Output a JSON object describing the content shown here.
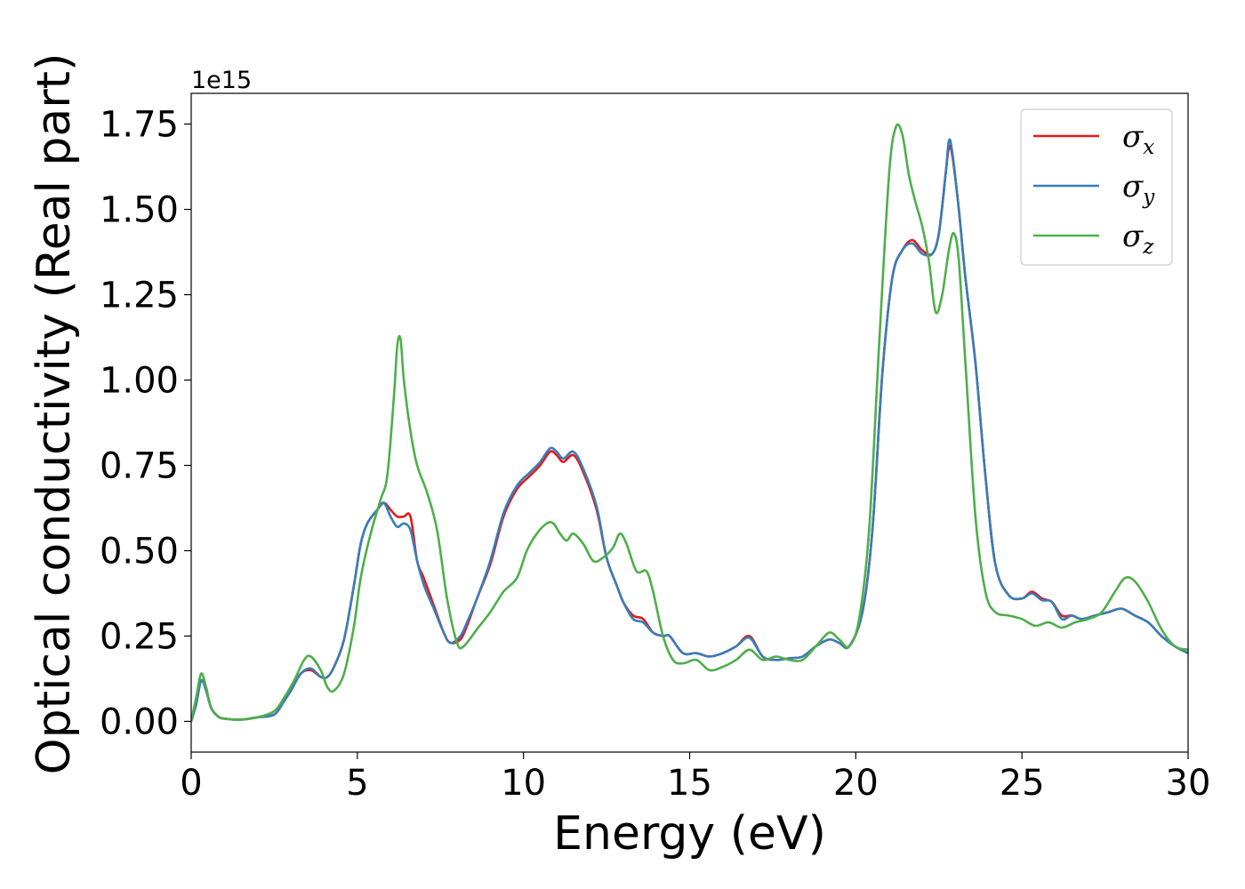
{
  "chart_data": {
    "type": "line",
    "xlabel": "Energy (eV)",
    "ylabel": "Optical conductivity (Real part)",
    "offset_text": "1e15",
    "y_scale": 1000000000000000.0,
    "xlim": [
      0,
      30
    ],
    "ylim": [
      -0.09,
      1.84
    ],
    "xticks": [
      0,
      5,
      10,
      15,
      20,
      25,
      30
    ],
    "xtick_labels": [
      "0",
      "5",
      "10",
      "15",
      "20",
      "25",
      "30"
    ],
    "yticks": [
      0.0,
      0.25,
      0.5,
      0.75,
      1.0,
      1.25,
      1.5,
      1.75
    ],
    "ytick_labels": [
      "0.00",
      "0.25",
      "0.50",
      "0.75",
      "1.00",
      "1.25",
      "1.50",
      "1.75"
    ],
    "grid": false,
    "legend_position": "top-right",
    "series": [
      {
        "name": "σx",
        "symbol": "σ",
        "subscript": "x",
        "color": "#e41a1c",
        "points": [
          [
            0,
            0.0
          ],
          [
            0.15,
            0.05
          ],
          [
            0.3,
            0.12
          ],
          [
            0.45,
            0.09
          ],
          [
            0.6,
            0.04
          ],
          [
            0.8,
            0.015
          ],
          [
            1.0,
            0.008
          ],
          [
            1.5,
            0.005
          ],
          [
            2.0,
            0.012
          ],
          [
            2.5,
            0.02
          ],
          [
            2.8,
            0.06
          ],
          [
            3.0,
            0.09
          ],
          [
            3.3,
            0.14
          ],
          [
            3.6,
            0.15
          ],
          [
            3.9,
            0.13
          ],
          [
            4.1,
            0.13
          ],
          [
            4.3,
            0.16
          ],
          [
            4.6,
            0.24
          ],
          [
            4.9,
            0.4
          ],
          [
            5.1,
            0.52
          ],
          [
            5.3,
            0.58
          ],
          [
            5.6,
            0.62
          ],
          [
            5.8,
            0.64
          ],
          [
            6.0,
            0.62
          ],
          [
            6.2,
            0.6
          ],
          [
            6.4,
            0.6
          ],
          [
            6.6,
            0.6
          ],
          [
            6.8,
            0.47
          ],
          [
            7.0,
            0.42
          ],
          [
            7.3,
            0.34
          ],
          [
            7.6,
            0.26
          ],
          [
            7.8,
            0.23
          ],
          [
            8.1,
            0.24
          ],
          [
            8.3,
            0.28
          ],
          [
            8.6,
            0.36
          ],
          [
            9.0,
            0.46
          ],
          [
            9.4,
            0.6
          ],
          [
            9.8,
            0.68
          ],
          [
            10.2,
            0.72
          ],
          [
            10.5,
            0.75
          ],
          [
            10.8,
            0.79
          ],
          [
            11.0,
            0.78
          ],
          [
            11.2,
            0.76
          ],
          [
            11.5,
            0.78
          ],
          [
            11.8,
            0.73
          ],
          [
            12.2,
            0.62
          ],
          [
            12.5,
            0.48
          ],
          [
            12.8,
            0.4
          ],
          [
            13.0,
            0.35
          ],
          [
            13.3,
            0.31
          ],
          [
            13.6,
            0.3
          ],
          [
            13.9,
            0.26
          ],
          [
            14.2,
            0.25
          ],
          [
            14.4,
            0.25
          ],
          [
            14.8,
            0.2
          ],
          [
            15.2,
            0.2
          ],
          [
            15.6,
            0.19
          ],
          [
            16.0,
            0.2
          ],
          [
            16.4,
            0.22
          ],
          [
            16.8,
            0.25
          ],
          [
            17.2,
            0.19
          ],
          [
            17.6,
            0.18
          ],
          [
            18.0,
            0.185
          ],
          [
            18.4,
            0.19
          ],
          [
            18.8,
            0.22
          ],
          [
            19.2,
            0.24
          ],
          [
            19.5,
            0.23
          ],
          [
            19.8,
            0.22
          ],
          [
            20.2,
            0.32
          ],
          [
            20.5,
            0.56
          ],
          [
            20.8,
            1.02
          ],
          [
            21.1,
            1.3
          ],
          [
            21.4,
            1.38
          ],
          [
            21.7,
            1.41
          ],
          [
            22.0,
            1.38
          ],
          [
            22.3,
            1.37
          ],
          [
            22.5,
            1.43
          ],
          [
            22.7,
            1.6
          ],
          [
            22.8,
            1.68
          ],
          [
            22.9,
            1.66
          ],
          [
            23.1,
            1.5
          ],
          [
            23.3,
            1.3
          ],
          [
            23.6,
            1.05
          ],
          [
            23.9,
            0.72
          ],
          [
            24.2,
            0.46
          ],
          [
            24.6,
            0.37
          ],
          [
            25.0,
            0.36
          ],
          [
            25.3,
            0.38
          ],
          [
            25.6,
            0.36
          ],
          [
            25.9,
            0.35
          ],
          [
            26.2,
            0.31
          ],
          [
            26.5,
            0.31
          ],
          [
            26.8,
            0.3
          ],
          [
            27.2,
            0.31
          ],
          [
            27.6,
            0.32
          ],
          [
            28.0,
            0.33
          ],
          [
            28.4,
            0.31
          ],
          [
            28.8,
            0.29
          ],
          [
            29.2,
            0.25
          ],
          [
            29.6,
            0.22
          ],
          [
            30.0,
            0.2
          ]
        ]
      },
      {
        "name": "σy",
        "symbol": "σ",
        "subscript": "y",
        "color": "#377eb8",
        "points": [
          [
            0,
            0.0
          ],
          [
            0.15,
            0.05
          ],
          [
            0.3,
            0.12
          ],
          [
            0.45,
            0.09
          ],
          [
            0.6,
            0.04
          ],
          [
            0.8,
            0.015
          ],
          [
            1.0,
            0.008
          ],
          [
            1.5,
            0.005
          ],
          [
            2.0,
            0.012
          ],
          [
            2.5,
            0.02
          ],
          [
            2.8,
            0.06
          ],
          [
            3.0,
            0.09
          ],
          [
            3.3,
            0.14
          ],
          [
            3.6,
            0.155
          ],
          [
            3.9,
            0.13
          ],
          [
            4.1,
            0.13
          ],
          [
            4.3,
            0.16
          ],
          [
            4.6,
            0.24
          ],
          [
            4.9,
            0.4
          ],
          [
            5.1,
            0.52
          ],
          [
            5.3,
            0.58
          ],
          [
            5.6,
            0.62
          ],
          [
            5.8,
            0.64
          ],
          [
            6.0,
            0.6
          ],
          [
            6.2,
            0.57
          ],
          [
            6.4,
            0.58
          ],
          [
            6.6,
            0.56
          ],
          [
            6.8,
            0.47
          ],
          [
            7.0,
            0.4
          ],
          [
            7.3,
            0.33
          ],
          [
            7.6,
            0.26
          ],
          [
            7.8,
            0.23
          ],
          [
            8.1,
            0.25
          ],
          [
            8.3,
            0.29
          ],
          [
            8.6,
            0.36
          ],
          [
            9.0,
            0.47
          ],
          [
            9.4,
            0.61
          ],
          [
            9.8,
            0.69
          ],
          [
            10.2,
            0.73
          ],
          [
            10.5,
            0.76
          ],
          [
            10.8,
            0.8
          ],
          [
            11.0,
            0.79
          ],
          [
            11.2,
            0.77
          ],
          [
            11.5,
            0.79
          ],
          [
            11.8,
            0.74
          ],
          [
            12.2,
            0.63
          ],
          [
            12.5,
            0.48
          ],
          [
            12.8,
            0.4
          ],
          [
            13.0,
            0.35
          ],
          [
            13.3,
            0.3
          ],
          [
            13.6,
            0.29
          ],
          [
            13.9,
            0.26
          ],
          [
            14.2,
            0.25
          ],
          [
            14.4,
            0.25
          ],
          [
            14.8,
            0.2
          ],
          [
            15.2,
            0.2
          ],
          [
            15.6,
            0.19
          ],
          [
            16.0,
            0.2
          ],
          [
            16.4,
            0.22
          ],
          [
            16.8,
            0.245
          ],
          [
            17.2,
            0.19
          ],
          [
            17.6,
            0.18
          ],
          [
            18.0,
            0.185
          ],
          [
            18.4,
            0.19
          ],
          [
            18.8,
            0.22
          ],
          [
            19.2,
            0.24
          ],
          [
            19.5,
            0.23
          ],
          [
            19.8,
            0.22
          ],
          [
            20.2,
            0.32
          ],
          [
            20.5,
            0.56
          ],
          [
            20.8,
            1.02
          ],
          [
            21.1,
            1.3
          ],
          [
            21.4,
            1.38
          ],
          [
            21.7,
            1.4
          ],
          [
            22.0,
            1.37
          ],
          [
            22.3,
            1.37
          ],
          [
            22.5,
            1.43
          ],
          [
            22.7,
            1.6
          ],
          [
            22.8,
            1.7
          ],
          [
            22.9,
            1.67
          ],
          [
            23.1,
            1.5
          ],
          [
            23.3,
            1.3
          ],
          [
            23.6,
            1.05
          ],
          [
            23.9,
            0.72
          ],
          [
            24.2,
            0.46
          ],
          [
            24.6,
            0.37
          ],
          [
            25.0,
            0.36
          ],
          [
            25.3,
            0.375
          ],
          [
            25.6,
            0.355
          ],
          [
            25.9,
            0.35
          ],
          [
            26.2,
            0.3
          ],
          [
            26.5,
            0.31
          ],
          [
            26.8,
            0.3
          ],
          [
            27.2,
            0.31
          ],
          [
            27.6,
            0.32
          ],
          [
            28.0,
            0.33
          ],
          [
            28.4,
            0.31
          ],
          [
            28.8,
            0.29
          ],
          [
            29.2,
            0.25
          ],
          [
            29.6,
            0.22
          ],
          [
            30.0,
            0.2
          ]
        ]
      },
      {
        "name": "σz",
        "symbol": "σ",
        "subscript": "z",
        "color": "#4daf4a",
        "points": [
          [
            0,
            0.0
          ],
          [
            0.15,
            0.07
          ],
          [
            0.3,
            0.14
          ],
          [
            0.45,
            0.1
          ],
          [
            0.6,
            0.04
          ],
          [
            0.8,
            0.015
          ],
          [
            1.0,
            0.008
          ],
          [
            1.5,
            0.005
          ],
          [
            2.0,
            0.012
          ],
          [
            2.5,
            0.03
          ],
          [
            2.8,
            0.07
          ],
          [
            3.1,
            0.12
          ],
          [
            3.4,
            0.18
          ],
          [
            3.6,
            0.19
          ],
          [
            3.9,
            0.15
          ],
          [
            4.1,
            0.1
          ],
          [
            4.3,
            0.09
          ],
          [
            4.6,
            0.14
          ],
          [
            4.9,
            0.28
          ],
          [
            5.1,
            0.42
          ],
          [
            5.4,
            0.55
          ],
          [
            5.7,
            0.65
          ],
          [
            5.9,
            0.72
          ],
          [
            6.1,
            0.95
          ],
          [
            6.2,
            1.1
          ],
          [
            6.3,
            1.12
          ],
          [
            6.4,
            1.0
          ],
          [
            6.6,
            0.85
          ],
          [
            6.8,
            0.75
          ],
          [
            7.1,
            0.67
          ],
          [
            7.4,
            0.56
          ],
          [
            7.7,
            0.36
          ],
          [
            8.0,
            0.23
          ],
          [
            8.2,
            0.22
          ],
          [
            8.6,
            0.27
          ],
          [
            9.0,
            0.32
          ],
          [
            9.4,
            0.38
          ],
          [
            9.8,
            0.42
          ],
          [
            10.1,
            0.5
          ],
          [
            10.4,
            0.55
          ],
          [
            10.7,
            0.58
          ],
          [
            10.9,
            0.58
          ],
          [
            11.1,
            0.55
          ],
          [
            11.3,
            0.53
          ],
          [
            11.5,
            0.55
          ],
          [
            11.8,
            0.52
          ],
          [
            12.1,
            0.47
          ],
          [
            12.4,
            0.48
          ],
          [
            12.7,
            0.51
          ],
          [
            12.9,
            0.55
          ],
          [
            13.1,
            0.52
          ],
          [
            13.4,
            0.44
          ],
          [
            13.7,
            0.44
          ],
          [
            13.9,
            0.38
          ],
          [
            14.2,
            0.25
          ],
          [
            14.5,
            0.18
          ],
          [
            14.8,
            0.17
          ],
          [
            15.2,
            0.18
          ],
          [
            15.6,
            0.15
          ],
          [
            16.0,
            0.16
          ],
          [
            16.4,
            0.18
          ],
          [
            16.8,
            0.21
          ],
          [
            17.2,
            0.18
          ],
          [
            17.6,
            0.19
          ],
          [
            18.0,
            0.18
          ],
          [
            18.4,
            0.18
          ],
          [
            18.8,
            0.22
          ],
          [
            19.2,
            0.26
          ],
          [
            19.5,
            0.24
          ],
          [
            19.8,
            0.22
          ],
          [
            20.1,
            0.3
          ],
          [
            20.4,
            0.56
          ],
          [
            20.7,
            1.1
          ],
          [
            21.0,
            1.6
          ],
          [
            21.2,
            1.74
          ],
          [
            21.4,
            1.72
          ],
          [
            21.6,
            1.6
          ],
          [
            21.8,
            1.52
          ],
          [
            22.0,
            1.45
          ],
          [
            22.2,
            1.35
          ],
          [
            22.4,
            1.2
          ],
          [
            22.6,
            1.25
          ],
          [
            22.8,
            1.38
          ],
          [
            22.95,
            1.43
          ],
          [
            23.1,
            1.35
          ],
          [
            23.3,
            1.05
          ],
          [
            23.6,
            0.6
          ],
          [
            23.9,
            0.38
          ],
          [
            24.2,
            0.32
          ],
          [
            24.6,
            0.31
          ],
          [
            25.0,
            0.3
          ],
          [
            25.4,
            0.28
          ],
          [
            25.8,
            0.29
          ],
          [
            26.2,
            0.275
          ],
          [
            26.6,
            0.29
          ],
          [
            27.0,
            0.3
          ],
          [
            27.4,
            0.32
          ],
          [
            27.8,
            0.38
          ],
          [
            28.1,
            0.42
          ],
          [
            28.4,
            0.41
          ],
          [
            28.8,
            0.35
          ],
          [
            29.2,
            0.27
          ],
          [
            29.6,
            0.22
          ],
          [
            30.0,
            0.21
          ]
        ]
      }
    ]
  }
}
